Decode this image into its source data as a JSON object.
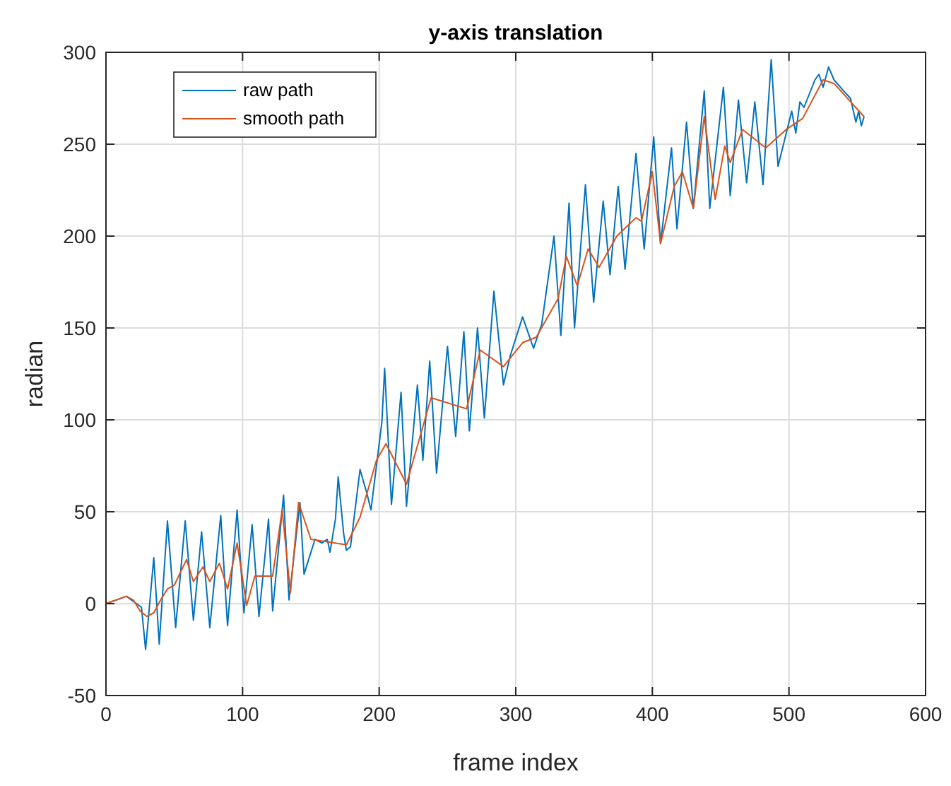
{
  "chart_data": {
    "type": "line",
    "title": "y-axis translation",
    "xlabel": "frame index",
    "ylabel": "radian",
    "xlim": [
      0,
      600
    ],
    "ylim": [
      -50,
      300
    ],
    "xticks": [
      0,
      100,
      200,
      300,
      400,
      500,
      600
    ],
    "yticks": [
      -50,
      0,
      50,
      100,
      150,
      200,
      250,
      300
    ],
    "grid": true,
    "legend": "top left",
    "marker": "none",
    "line_style": "solid",
    "series": [
      {
        "name": "raw path",
        "color": "#0072bd",
        "x": [
          0,
          15,
          26,
          29,
          35,
          39,
          45,
          51,
          58,
          64,
          70,
          76,
          84,
          89,
          96,
          101,
          107,
          112,
          119,
          122,
          130,
          134,
          142,
          145,
          153,
          158,
          162,
          164,
          168,
          170,
          174,
          176,
          179,
          186,
          191,
          194,
          202,
          204,
          209,
          216,
          220,
          228,
          232,
          237,
          242,
          250,
          256,
          262,
          266,
          272,
          277,
          284,
          291,
          296,
          305,
          313,
          319,
          328,
          333,
          339,
          343,
          351,
          357,
          364,
          369,
          375,
          380,
          388,
          394,
          401,
          406,
          414,
          418,
          425,
          430,
          438,
          442,
          452,
          457,
          463,
          469,
          475,
          481,
          487,
          492,
          502,
          505,
          508,
          511,
          519,
          522,
          525,
          529,
          533,
          540,
          545,
          549,
          551,
          553,
          555
        ],
        "values": [
          0,
          4,
          -2,
          -25,
          25,
          -22,
          45,
          -13,
          45,
          -9,
          39,
          -13,
          48,
          -12,
          51,
          -5,
          43,
          -7,
          46,
          -4,
          59,
          2,
          55,
          16,
          35,
          33,
          35,
          28,
          46,
          69,
          38,
          29,
          31,
          73,
          60,
          51,
          99,
          128,
          54,
          115,
          53,
          119,
          78,
          132,
          71,
          140,
          91,
          148,
          94,
          150,
          101,
          170,
          119,
          135,
          156,
          139,
          152,
          200,
          146,
          218,
          150,
          228,
          164,
          219,
          179,
          227,
          182,
          245,
          193,
          254,
          196,
          248,
          204,
          262,
          215,
          279,
          215,
          281,
          222,
          274,
          229,
          273,
          228,
          296,
          238,
          268,
          256,
          273,
          270,
          285,
          288,
          281,
          292,
          285,
          279,
          275,
          262,
          268,
          260,
          265
        ]
      },
      {
        "name": "smooth path",
        "color": "#d95319",
        "x": [
          0,
          15,
          20,
          25,
          30,
          35,
          40,
          45,
          50,
          59,
          64,
          71,
          76,
          83,
          89,
          96,
          103,
          109,
          122,
          129,
          135,
          141,
          150,
          176,
          186,
          198,
          205,
          220,
          238,
          264,
          274,
          291,
          305,
          315,
          331,
          337,
          345,
          353,
          361,
          374,
          388,
          392,
          400,
          406,
          416,
          422,
          430,
          438,
          446,
          453,
          457,
          466,
          483,
          498,
          510,
          525,
          533,
          555
        ],
        "values": [
          0,
          4,
          2,
          -4,
          -7,
          -5,
          2,
          8,
          10,
          24,
          12,
          20,
          12,
          22,
          8,
          33,
          -1,
          15,
          15,
          51,
          6,
          55,
          35,
          32,
          47,
          78,
          87,
          65,
          112,
          106,
          138,
          129,
          142,
          145,
          166,
          189,
          173,
          193,
          183,
          200,
          210,
          208,
          235,
          196,
          227,
          235,
          215,
          265,
          220,
          249,
          240,
          258,
          248,
          258,
          264,
          285,
          283,
          265
        ]
      }
    ]
  }
}
